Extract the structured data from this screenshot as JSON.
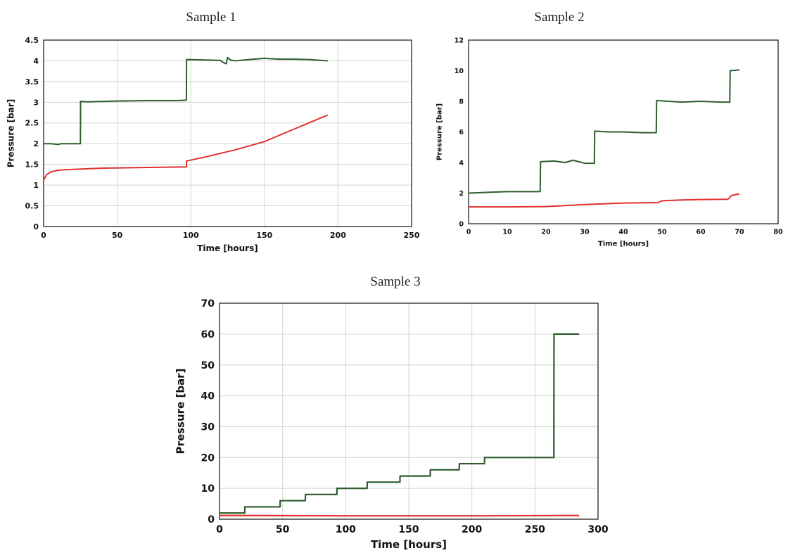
{
  "chart_data": [
    {
      "type": "line",
      "title": "Sample 1",
      "xlabel": "Time [hours]",
      "ylabel": "Pressure [bar]",
      "xlim": [
        0,
        250
      ],
      "ylim": [
        0,
        4.5
      ],
      "xticks": [
        "0",
        "50",
        "100",
        "150",
        "200",
        "250"
      ],
      "yticks": [
        "0",
        "0.5",
        "1",
        "1.5",
        "2",
        "2.5",
        "3",
        "3.5",
        "4",
        "4.5"
      ],
      "grid": true,
      "series": [
        {
          "color": "#2e5e2b",
          "x": [
            0,
            5,
            10,
            12,
            20,
            25,
            25.1,
            30,
            50,
            70,
            90,
            97,
            97.1,
            110,
            120,
            122,
            124,
            125,
            127,
            130,
            140,
            150,
            160,
            170,
            180,
            193
          ],
          "y": [
            2.0,
            2.0,
            1.98,
            2.0,
            2.0,
            2.0,
            3.02,
            3.01,
            3.03,
            3.04,
            3.04,
            3.05,
            4.03,
            4.02,
            4.01,
            3.96,
            3.93,
            4.08,
            4.02,
            4.0,
            4.03,
            4.06,
            4.04,
            4.04,
            4.03,
            4.0
          ]
        },
        {
          "color": "#e2312f",
          "x": [
            0,
            2,
            5,
            10,
            20,
            40,
            60,
            80,
            97,
            97.1,
            110,
            130,
            150,
            170,
            193
          ],
          "y": [
            1.12,
            1.25,
            1.32,
            1.36,
            1.38,
            1.41,
            1.42,
            1.43,
            1.44,
            1.58,
            1.68,
            1.85,
            2.05,
            2.35,
            2.69
          ]
        }
      ]
    },
    {
      "type": "line",
      "title": "Sample 2",
      "xlabel": "Time [hours]",
      "ylabel": "Pressure [bar]",
      "xlim": [
        0,
        80
      ],
      "ylim": [
        0,
        12
      ],
      "xticks": [
        "0",
        "10",
        "20",
        "30",
        "40",
        "50",
        "60",
        "70",
        "80"
      ],
      "yticks": [
        "0",
        "2",
        "4",
        "6",
        "8",
        "10",
        "12"
      ],
      "grid": false,
      "series": [
        {
          "color": "#2e5e2b",
          "x": [
            0,
            5,
            10,
            15,
            18.5,
            18.6,
            22,
            25,
            27,
            30,
            32.5,
            32.6,
            36,
            40,
            45,
            48.5,
            48.6,
            55,
            60,
            65,
            67.5,
            67.6,
            70
          ],
          "y": [
            2.0,
            2.05,
            2.1,
            2.1,
            2.1,
            4.05,
            4.1,
            4.0,
            4.15,
            3.95,
            3.95,
            6.05,
            6.0,
            6.0,
            5.95,
            5.95,
            8.05,
            7.95,
            8.0,
            7.95,
            7.95,
            10.0,
            10.05
          ]
        },
        {
          "color": "#e2312f",
          "x": [
            0,
            10,
            20,
            30,
            40,
            49,
            50,
            55,
            60,
            67,
            68,
            70
          ],
          "y": [
            1.1,
            1.1,
            1.12,
            1.25,
            1.35,
            1.38,
            1.5,
            1.55,
            1.58,
            1.6,
            1.85,
            1.95
          ]
        }
      ]
    },
    {
      "type": "line",
      "title": "Sample 3",
      "xlabel": "Time [hours]",
      "ylabel": "Pressure [bar]",
      "xlim": [
        0,
        300
      ],
      "ylim": [
        0,
        70
      ],
      "xticks": [
        "0",
        "50",
        "100",
        "150",
        "200",
        "250",
        "300"
      ],
      "yticks": [
        "0",
        "10",
        "20",
        "30",
        "40",
        "50",
        "60",
        "70"
      ],
      "grid": true,
      "series": [
        {
          "color": "#2e5e2b",
          "x": [
            0,
            20,
            20.1,
            48,
            48.1,
            68,
            68.1,
            93,
            93.1,
            117,
            117.1,
            143,
            143.1,
            167,
            167.1,
            190,
            190.1,
            210,
            210.1,
            265,
            265.1,
            285
          ],
          "y": [
            2,
            2,
            4,
            4,
            6,
            6,
            8,
            8,
            10,
            10,
            12,
            12,
            14,
            14,
            16,
            16,
            18,
            18,
            20,
            20,
            60,
            60
          ]
        },
        {
          "color": "#e2312f",
          "x": [
            0,
            100,
            200,
            285
          ],
          "y": [
            1.2,
            1.1,
            1.1,
            1.2
          ]
        }
      ]
    }
  ]
}
